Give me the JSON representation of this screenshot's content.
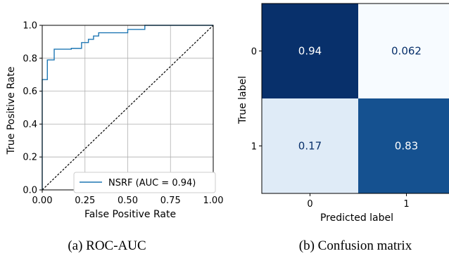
{
  "chart_data": [
    {
      "type": "line",
      "caption": "(a) ROC-AUC",
      "xlabel": "False Positive Rate",
      "ylabel": "True Positive Rate",
      "xlim": [
        0,
        1
      ],
      "ylim": [
        0,
        1
      ],
      "grid": true,
      "x_ticks": [
        "0.00",
        "0.25",
        "0.50",
        "0.75",
        "1.00"
      ],
      "y_ticks": [
        "0.0",
        "0.2",
        "0.4",
        "0.6",
        "0.8",
        "1.0"
      ],
      "legend_position": "bottom-right",
      "series": [
        {
          "name": "NSRF (AUC = 0.94)",
          "color": "#1f77b4",
          "points": [
            [
              0,
              0
            ],
            [
              0,
              0.67
            ],
            [
              0.03,
              0.67
            ],
            [
              0.03,
              0.79
            ],
            [
              0.07,
              0.79
            ],
            [
              0.07,
              0.855
            ],
            [
              0.17,
              0.855
            ],
            [
              0.17,
              0.86
            ],
            [
              0.23,
              0.86
            ],
            [
              0.23,
              0.895
            ],
            [
              0.27,
              0.895
            ],
            [
              0.27,
              0.915
            ],
            [
              0.3,
              0.915
            ],
            [
              0.3,
              0.935
            ],
            [
              0.33,
              0.935
            ],
            [
              0.33,
              0.955
            ],
            [
              0.5,
              0.955
            ],
            [
              0.5,
              0.975
            ],
            [
              0.6,
              0.975
            ],
            [
              0.6,
              1.0
            ],
            [
              1.0,
              1.0
            ]
          ]
        }
      ],
      "reference_line": {
        "points": [
          [
            0,
            0
          ],
          [
            1,
            1
          ]
        ],
        "style": "dashed",
        "color": "#000000"
      }
    },
    {
      "type": "heatmap",
      "caption": "(b) Confusion matrix",
      "xlabel": "Predicted label",
      "ylabel": "True label",
      "x_categories": [
        "0",
        "1"
      ],
      "y_categories": [
        "0",
        "1"
      ],
      "values": [
        [
          0.94,
          0.062
        ],
        [
          0.17,
          0.83
        ]
      ],
      "labels": [
        [
          "0.94",
          "0.062"
        ],
        [
          "0.17",
          "0.83"
        ]
      ],
      "colormap": "Blues"
    }
  ]
}
